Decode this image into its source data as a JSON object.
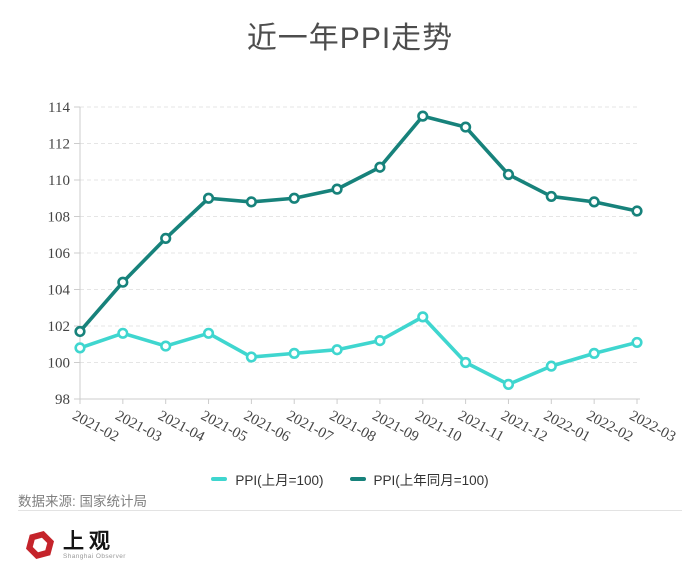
{
  "chart_data": {
    "type": "line",
    "title": "近一年PPI走势",
    "categories": [
      "2021-02",
      "2021-03",
      "2021-04",
      "2021-05",
      "2021-06",
      "2021-07",
      "2021-08",
      "2021-09",
      "2021-10",
      "2021-11",
      "2021-12",
      "2022-01",
      "2022-02",
      "2022-03"
    ],
    "series": [
      {
        "name": "PPI(上月=100)",
        "color": "#3fd6cf",
        "values": [
          100.8,
          101.6,
          100.9,
          101.6,
          100.3,
          100.5,
          100.7,
          101.2,
          102.5,
          100.0,
          98.8,
          99.8,
          100.5,
          101.1
        ]
      },
      {
        "name": "PPI(上年同月=100)",
        "color": "#17827b",
        "values": [
          101.7,
          104.4,
          106.8,
          109.0,
          108.8,
          109.0,
          109.5,
          110.7,
          113.5,
          112.9,
          110.3,
          109.1,
          108.8,
          108.3
        ]
      }
    ],
    "xlabel": "",
    "ylabel": "",
    "ylim": [
      98,
      114
    ],
    "ytick_step": 2,
    "grid": "horizontal-dashed",
    "legend_position": "bottom",
    "x_label_rotation_deg": 28,
    "marker": "open-circle"
  },
  "footer": {
    "source": "数据来源: 国家统计局"
  },
  "logo": {
    "title": "上观",
    "subtitle": "Shanghai Observer",
    "hex_color": "#c5242b"
  },
  "colors": {
    "axis_line": "#cccccc",
    "gridline": "#e5e5e5",
    "axis_text": "#444444"
  }
}
